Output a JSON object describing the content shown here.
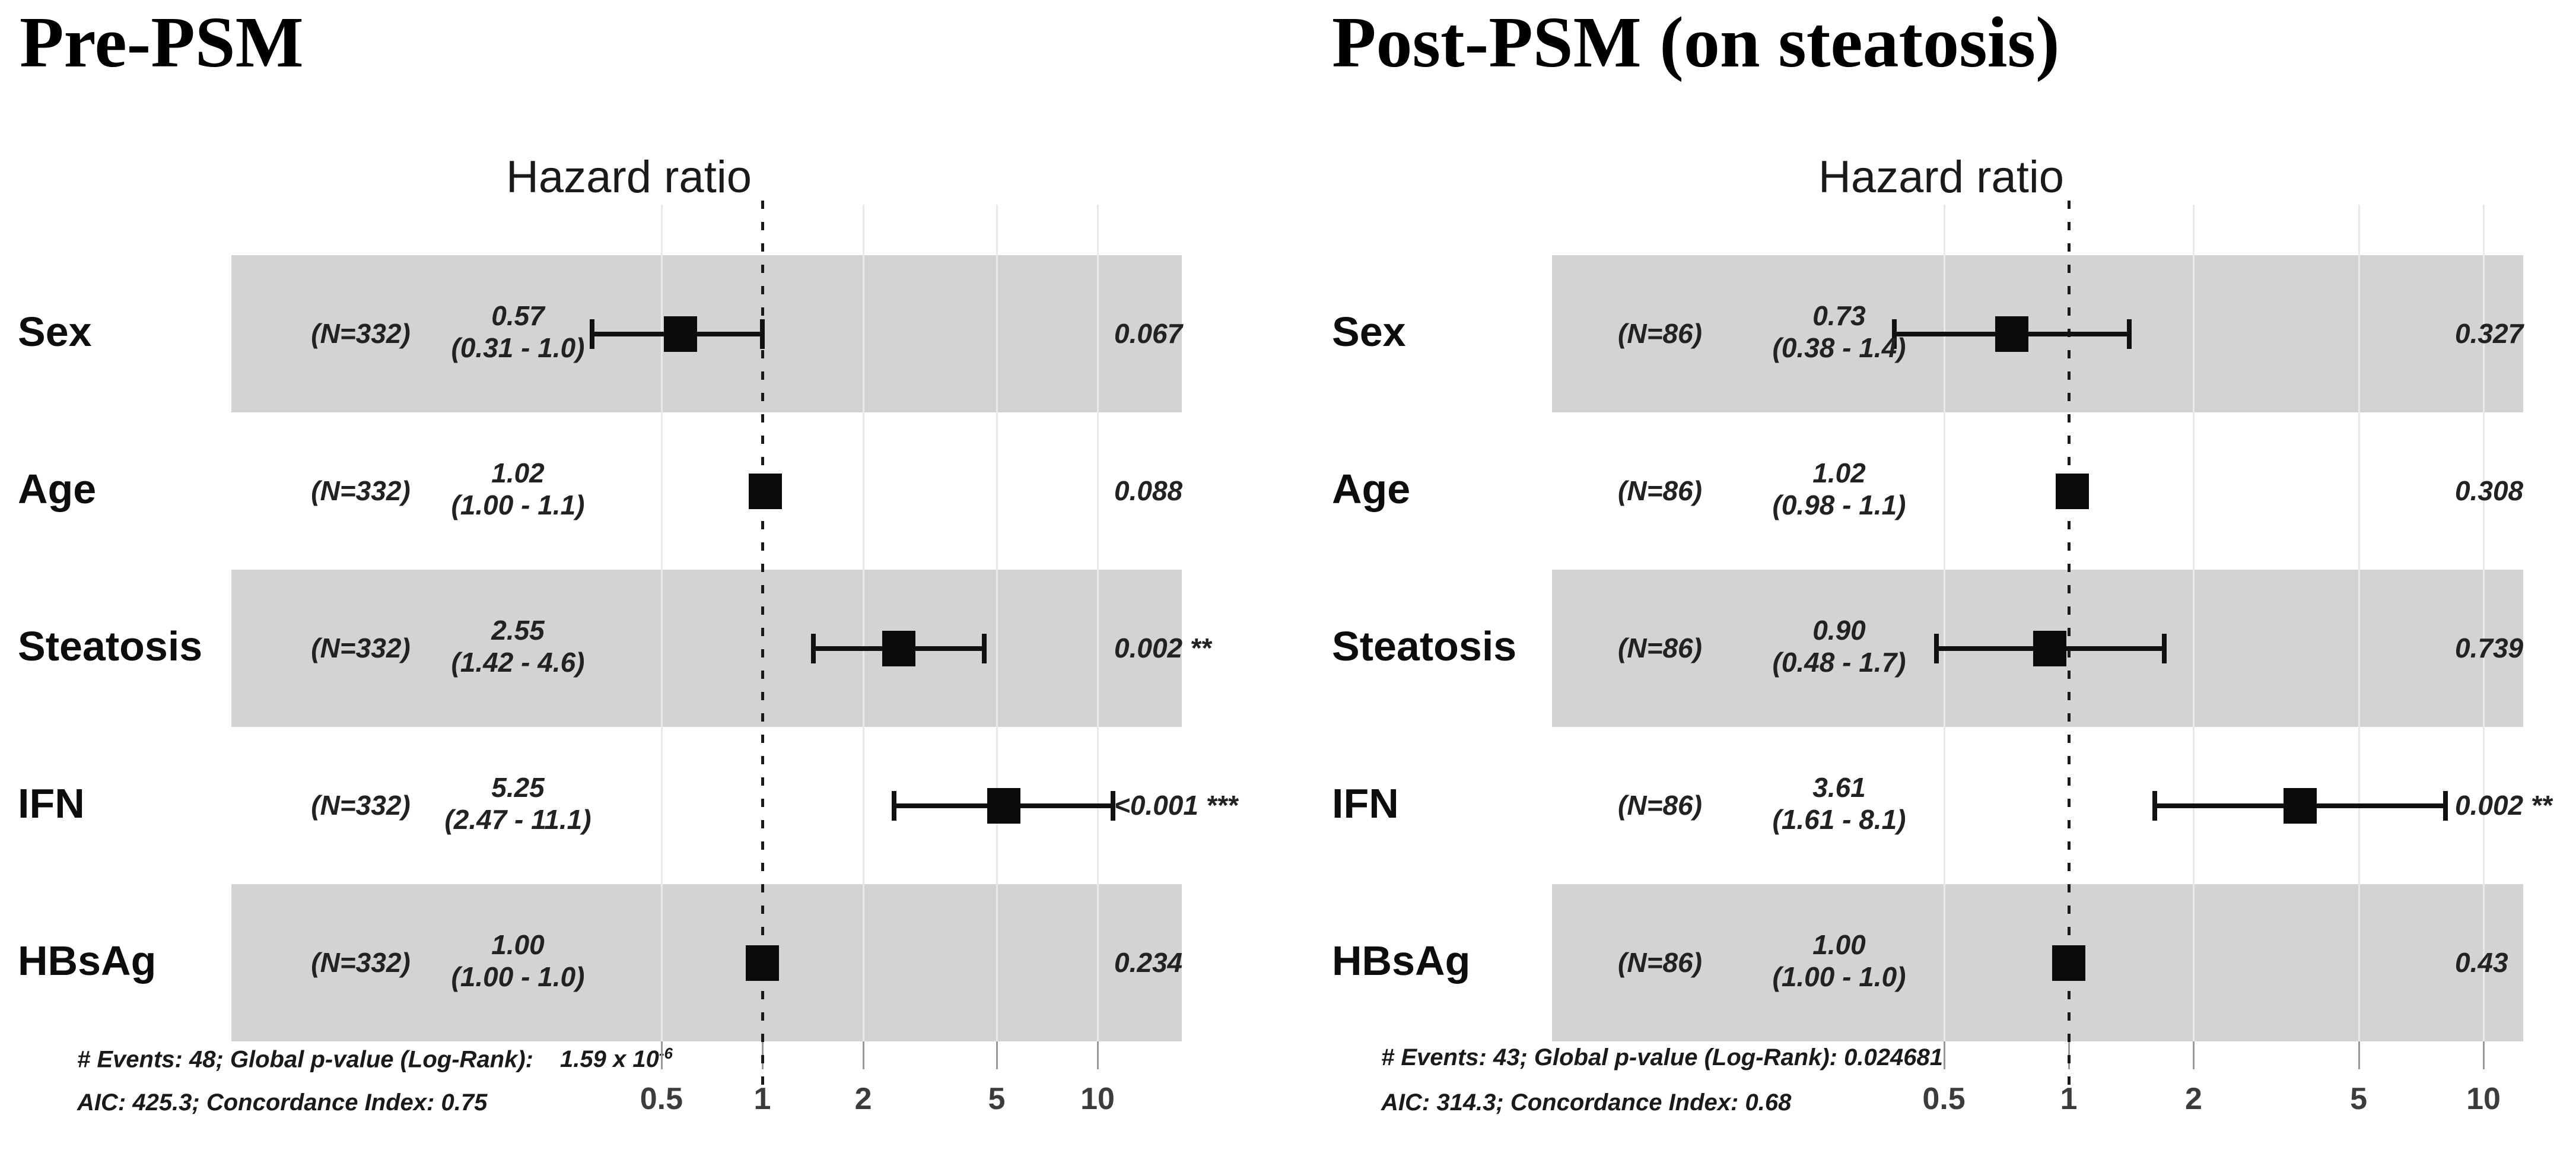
{
  "figure": {
    "panels": [
      {
        "title": "Pre-PSM",
        "axis_title": "Hazard ratio",
        "rows": [
          {
            "label": "Sex",
            "n": "(N=332)",
            "est": "0.57",
            "ci": "(0.31 - 1.0)",
            "p": "0.067",
            "hr": 0.57,
            "lo": 0.31,
            "hi": 1.0,
            "shaded": true
          },
          {
            "label": "Age",
            "n": "(N=332)",
            "est": "1.02",
            "ci": "(1.00 - 1.1)",
            "p": "0.088",
            "hr": 1.02,
            "lo": 1.0,
            "hi": 1.1,
            "shaded": false
          },
          {
            "label": "Steatosis",
            "n": "(N=332)",
            "est": "2.55",
            "ci": "(1.42 - 4.6)",
            "p": "0.002 **",
            "hr": 2.55,
            "lo": 1.42,
            "hi": 4.6,
            "shaded": true
          },
          {
            "label": "IFN",
            "n": "(N=332)",
            "est": "5.25",
            "ci": "(2.47 - 11.1)",
            "p": "<0.001 ***",
            "hr": 5.25,
            "lo": 2.47,
            "hi": 11.1,
            "shaded": false
          },
          {
            "label": "HBsAg",
            "n": "(N=332)",
            "est": "1.00",
            "ci": "(1.00 - 1.0)",
            "p": "0.234",
            "hr": 1.0,
            "lo": 1.0,
            "hi": 1.0,
            "shaded": true
          }
        ],
        "footer_line1": "# Events: 48; Global p-value (Log-Rank):",
        "footer_p_base": "1.59 x 10",
        "footer_p_sup": "-6",
        "footer_line2": "AIC: 425.3; Concordance Index: 0.75",
        "ticks": [
          "0.5",
          "1",
          "2",
          "5",
          "10"
        ]
      },
      {
        "title": "Post-PSM (on steatosis)",
        "axis_title": "Hazard ratio",
        "rows": [
          {
            "label": "Sex",
            "n": "(N=86)",
            "est": "0.73",
            "ci": "(0.38 - 1.4)",
            "p": "0.327",
            "hr": 0.73,
            "lo": 0.38,
            "hi": 1.4,
            "shaded": true
          },
          {
            "label": "Age",
            "n": "(N=86)",
            "est": "1.02",
            "ci": "(0.98 - 1.1)",
            "p": "0.308",
            "hr": 1.02,
            "lo": 0.98,
            "hi": 1.1,
            "shaded": false
          },
          {
            "label": "Steatosis",
            "n": "(N=86)",
            "est": "0.90",
            "ci": "(0.48 - 1.7)",
            "p": "0.739",
            "hr": 0.9,
            "lo": 0.48,
            "hi": 1.7,
            "shaded": true
          },
          {
            "label": "IFN",
            "n": "(N=86)",
            "est": "3.61",
            "ci": "(1.61 - 8.1)",
            "p": "0.002 **",
            "hr": 3.61,
            "lo": 1.61,
            "hi": 8.1,
            "shaded": false
          },
          {
            "label": "HBsAg",
            "n": "(N=86)",
            "est": "1.00",
            "ci": "(1.00 - 1.0)",
            "p": "0.43",
            "hr": 1.0,
            "lo": 1.0,
            "hi": 1.0,
            "shaded": true
          }
        ],
        "footer_line1": "# Events: 43; Global p-value (Log-Rank): 0.024681",
        "footer_p_base": "",
        "footer_p_sup": "",
        "footer_line2": "AIC: 314.3; Concordance Index: 0.68",
        "ticks": [
          "0.5",
          "1",
          "2",
          "5",
          "10"
        ]
      }
    ],
    "colors": {
      "band": "#d3d3d3",
      "grid": "#e9e9e9",
      "marker": "#0b0b0b",
      "reference": "#1a1a1a",
      "text": "#1a1a1a"
    }
  },
  "chart_data": {
    "type": "scatter",
    "subtype": "forest_plot",
    "xscale": "log",
    "x_ticks": [
      0.5,
      1,
      2,
      5,
      10
    ],
    "reference_line_x": 1,
    "legend": "none",
    "grid": "vertical-on",
    "panels": [
      {
        "title": "Pre-PSM",
        "xlabel": "Hazard ratio",
        "n": 332,
        "variables": [
          "Sex",
          "Age",
          "Steatosis",
          "IFN",
          "HBsAg"
        ],
        "hr": [
          0.57,
          1.02,
          2.55,
          5.25,
          1.0
        ],
        "ci_low": [
          0.31,
          1.0,
          1.42,
          2.47,
          1.0
        ],
        "ci_high": [
          1.0,
          1.1,
          4.6,
          11.1,
          1.0
        ],
        "p_values": [
          "0.067",
          "0.088",
          "0.002 **",
          "<0.001 ***",
          "0.234"
        ],
        "events": 48,
        "global_p_logrank": "1.59 x 10^-6",
        "aic": 425.3,
        "concordance_index": 0.75
      },
      {
        "title": "Post-PSM (on steatosis)",
        "xlabel": "Hazard ratio",
        "n": 86,
        "variables": [
          "Sex",
          "Age",
          "Steatosis",
          "IFN",
          "HBsAg"
        ],
        "hr": [
          0.73,
          1.02,
          0.9,
          3.61,
          1.0
        ],
        "ci_low": [
          0.38,
          0.98,
          0.48,
          1.61,
          1.0
        ],
        "ci_high": [
          1.4,
          1.1,
          1.7,
          8.1,
          1.0
        ],
        "p_values": [
          "0.327",
          "0.308",
          "0.739",
          "0.002 **",
          "0.43"
        ],
        "events": 43,
        "global_p_logrank": "0.024681",
        "aic": 314.3,
        "concordance_index": 0.68
      }
    ]
  }
}
